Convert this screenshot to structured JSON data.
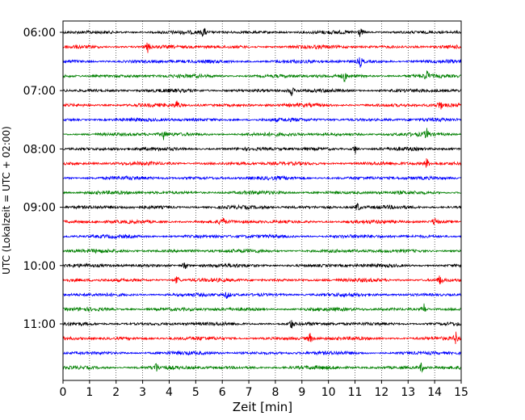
{
  "chart_data": {
    "type": "line",
    "title": "",
    "xlabel": "Zeit  [min]",
    "ylabel": "UTC (Lokalzeit = UTC + 02:00)",
    "xlim": [
      0,
      15
    ],
    "x_ticks": [
      "0",
      "1",
      "2",
      "3",
      "4",
      "5",
      "6",
      "7",
      "8",
      "9",
      "10",
      "11",
      "12",
      "13",
      "14",
      "15"
    ],
    "y_ticks": [
      "06:00",
      "07:00",
      "08:00",
      "09:00",
      "10:00",
      "11:00"
    ],
    "grid": "vertical dotted",
    "trace_colors": [
      "#000000",
      "#ff0000",
      "#0000ff",
      "#008000"
    ],
    "trace_start_times": [
      "06:00",
      "06:15",
      "06:30",
      "06:45",
      "07:00",
      "07:15",
      "07:30",
      "07:45",
      "08:00",
      "08:15",
      "08:30",
      "08:45",
      "09:00",
      "09:15",
      "09:30",
      "09:45",
      "10:00",
      "10:15",
      "10:30",
      "10:45",
      "11:00",
      "11:15",
      "11:30",
      "11:45"
    ],
    "events": [
      {
        "trace": 0,
        "minute": 5.3
      },
      {
        "trace": 0,
        "minute": 11.2
      },
      {
        "trace": 1,
        "minute": 3.2
      },
      {
        "trace": 2,
        "minute": 11.2
      },
      {
        "trace": 3,
        "minute": 10.6
      },
      {
        "trace": 3,
        "minute": 13.7
      },
      {
        "trace": 4,
        "minute": 8.6
      },
      {
        "trace": 5,
        "minute": 4.3
      },
      {
        "trace": 5,
        "minute": 14.2
      },
      {
        "trace": 7,
        "minute": 3.8
      },
      {
        "trace": 7,
        "minute": 13.7
      },
      {
        "trace": 8,
        "minute": 11.0
      },
      {
        "trace": 9,
        "minute": 13.7
      },
      {
        "trace": 12,
        "minute": 11.1
      },
      {
        "trace": 13,
        "minute": 6.0
      },
      {
        "trace": 13,
        "minute": 14.0
      },
      {
        "trace": 16,
        "minute": 4.6
      },
      {
        "trace": 17,
        "minute": 4.3
      },
      {
        "trace": 17,
        "minute": 14.2
      },
      {
        "trace": 18,
        "minute": 6.2
      },
      {
        "trace": 19,
        "minute": 13.6
      },
      {
        "trace": 20,
        "minute": 8.6
      },
      {
        "trace": 21,
        "minute": 9.3
      },
      {
        "trace": 21,
        "minute": 14.8
      },
      {
        "trace": 23,
        "minute": 3.5
      },
      {
        "trace": 23,
        "minute": 13.5
      }
    ]
  }
}
